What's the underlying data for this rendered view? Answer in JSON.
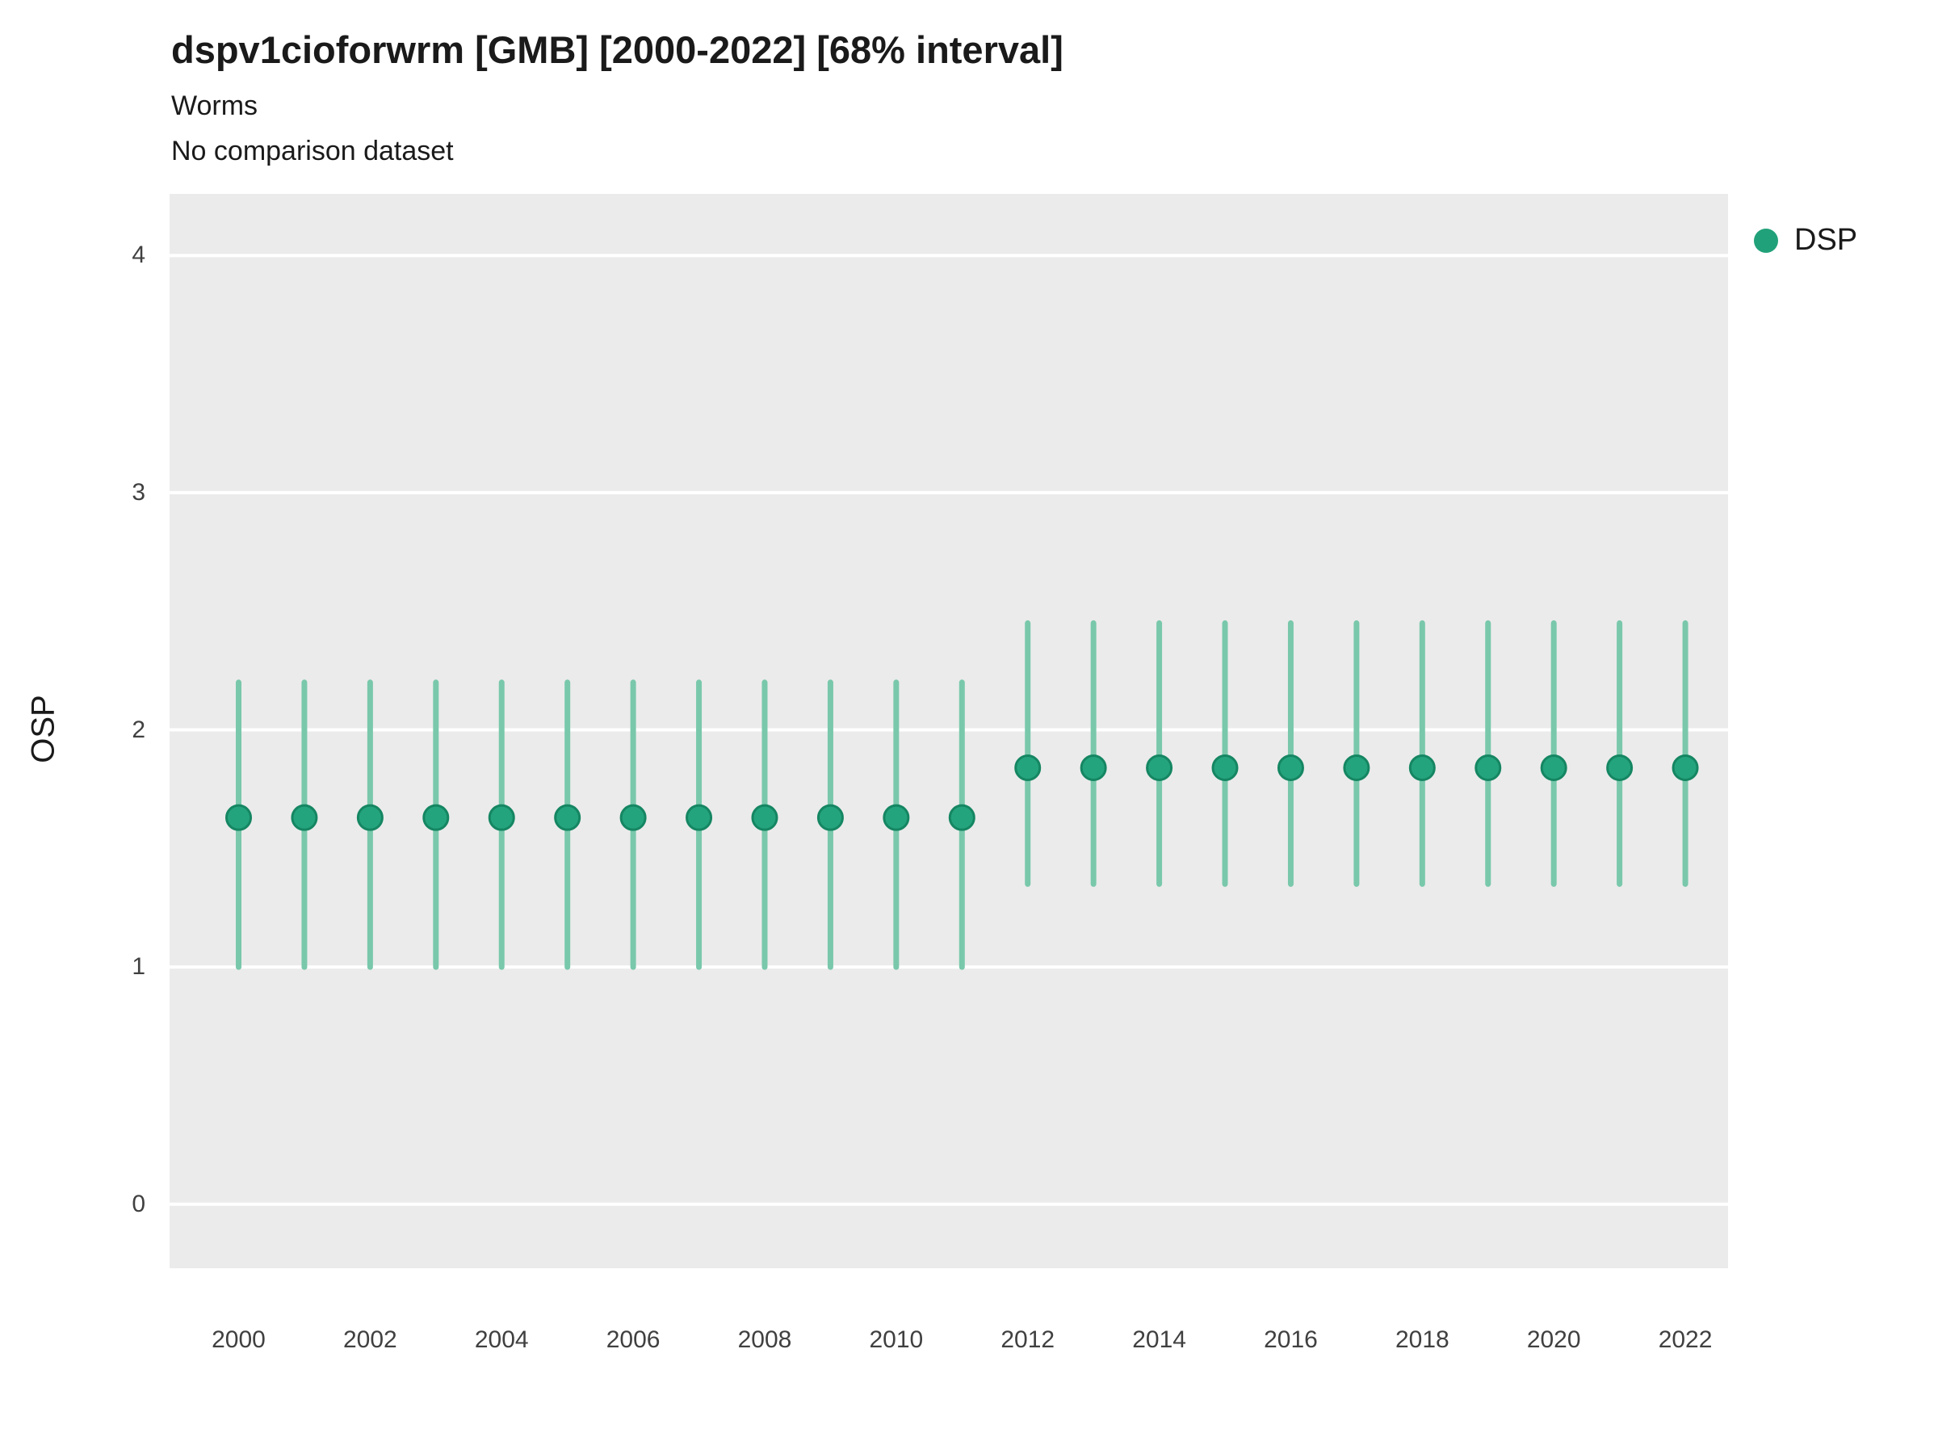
{
  "chart_data": {
    "type": "scatter",
    "title": "dspv1cioforwrm [GMB] [2000-2022] [68% interval]",
    "subtitle": "Worms",
    "subtitle2": "No comparison dataset",
    "xlabel": "",
    "ylabel": "OSP",
    "ylim": [
      -0.27,
      4.26
    ],
    "xlim": [
      1998.95,
      2022.65
    ],
    "yticks": [
      0,
      1,
      2,
      3,
      4
    ],
    "xticks": [
      2000,
      2002,
      2004,
      2006,
      2008,
      2010,
      2012,
      2014,
      2016,
      2018,
      2020,
      2022
    ],
    "grid": "major-horizontal-white",
    "panel_bg": "#EBEBEB",
    "gridline_color": "#FFFFFF",
    "legend_position": "right-top",
    "legend": [
      {
        "label": "DSP",
        "color": "#21a179"
      }
    ],
    "series": [
      {
        "name": "DSP",
        "interval_label": "68% interval",
        "point_color": "#24a47d",
        "point_stroke": "#158662",
        "interval_color": "#79c8ab",
        "points": [
          {
            "x": 2000,
            "y": 1.63,
            "lo": 1.0,
            "hi": 2.2
          },
          {
            "x": 2001,
            "y": 1.63,
            "lo": 1.0,
            "hi": 2.2
          },
          {
            "x": 2002,
            "y": 1.63,
            "lo": 1.0,
            "hi": 2.2
          },
          {
            "x": 2003,
            "y": 1.63,
            "lo": 1.0,
            "hi": 2.2
          },
          {
            "x": 2004,
            "y": 1.63,
            "lo": 1.0,
            "hi": 2.2
          },
          {
            "x": 2005,
            "y": 1.63,
            "lo": 1.0,
            "hi": 2.2
          },
          {
            "x": 2006,
            "y": 1.63,
            "lo": 1.0,
            "hi": 2.2
          },
          {
            "x": 2007,
            "y": 1.63,
            "lo": 1.0,
            "hi": 2.2
          },
          {
            "x": 2008,
            "y": 1.63,
            "lo": 1.0,
            "hi": 2.2
          },
          {
            "x": 2009,
            "y": 1.63,
            "lo": 1.0,
            "hi": 2.2
          },
          {
            "x": 2010,
            "y": 1.63,
            "lo": 1.0,
            "hi": 2.2
          },
          {
            "x": 2011,
            "y": 1.63,
            "lo": 1.0,
            "hi": 2.2
          },
          {
            "x": 2012,
            "y": 1.84,
            "lo": 1.35,
            "hi": 2.45
          },
          {
            "x": 2013,
            "y": 1.84,
            "lo": 1.35,
            "hi": 2.45
          },
          {
            "x": 2014,
            "y": 1.84,
            "lo": 1.35,
            "hi": 2.45
          },
          {
            "x": 2015,
            "y": 1.84,
            "lo": 1.35,
            "hi": 2.45
          },
          {
            "x": 2016,
            "y": 1.84,
            "lo": 1.35,
            "hi": 2.45
          },
          {
            "x": 2017,
            "y": 1.84,
            "lo": 1.35,
            "hi": 2.45
          },
          {
            "x": 2018,
            "y": 1.84,
            "lo": 1.35,
            "hi": 2.45
          },
          {
            "x": 2019,
            "y": 1.84,
            "lo": 1.35,
            "hi": 2.45
          },
          {
            "x": 2020,
            "y": 1.84,
            "lo": 1.35,
            "hi": 2.45
          },
          {
            "x": 2021,
            "y": 1.84,
            "lo": 1.35,
            "hi": 2.45
          },
          {
            "x": 2022,
            "y": 1.84,
            "lo": 1.35,
            "hi": 2.45
          }
        ]
      }
    ]
  }
}
